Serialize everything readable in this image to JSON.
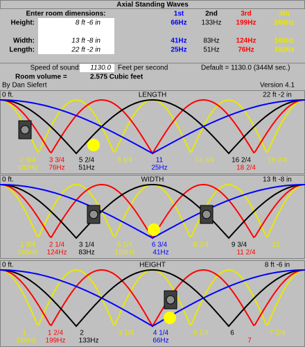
{
  "header": {
    "title": "Axial Standing Waves",
    "prompt": "Enter room dimensions:",
    "columns": [
      {
        "text": "1st",
        "color": "#0000ff"
      },
      {
        "text": "2nd",
        "color": "#000000"
      },
      {
        "text": "3rd",
        "color": "#ff0000"
      },
      {
        "text": "4th",
        "color": "#e8e800"
      }
    ],
    "rows": [
      {
        "label": "Height:",
        "value": "8 ft -6 in",
        "freqs": [
          "66Hz",
          "133Hz",
          "199Hz",
          "266Hz"
        ]
      },
      {
        "label": "Width:",
        "value": "13 ft -8 in",
        "freqs": [
          "41Hz",
          "83Hz",
          "124Hz",
          "165Hz"
        ]
      },
      {
        "label": "Length:",
        "value": "22 ft -2 in",
        "freqs": [
          "25Hz",
          "51Hz",
          "76Hz",
          "102Hz"
        ]
      }
    ],
    "speed_label": "Speed of sound:",
    "speed_value": "1130.0",
    "speed_unit": "Feet per second",
    "default_note": "Default = 1130.0 (344M sec.)",
    "volume_label": "Room volume =",
    "volume_value": "2.575 Cubic feet",
    "author": "By Dan Siefert",
    "version": "Version 4.1"
  },
  "panels": [
    {
      "title": "LENGTH",
      "start": "0 ft.",
      "size": "22 ft -2 in",
      "row1": [
        {
          "t": "2 3/4",
          "c": "#e8e800"
        },
        {
          "t": "3 3/4",
          "c": "#ff0000"
        },
        {
          "t": "5 2/4",
          "c": "#000000"
        },
        {
          "t": "8 1/4",
          "c": "#e8e800"
        },
        {
          "t": "11",
          "c": "#0000ff"
        },
        {
          "t": "13 3/4",
          "c": "#e8e800"
        },
        {
          "t": "16 2/4",
          "c": "#000000"
        },
        {
          "t": "19 2/4",
          "c": "#e8e800"
        }
      ],
      "row2": [
        {
          "t": "102Hz",
          "c": "#e8e800"
        },
        {
          "t": "76Hz",
          "c": "#ff0000"
        },
        {
          "t": "51Hz",
          "c": "#000000"
        },
        {
          "t": "25Hz",
          "c": "#0000ff"
        },
        {
          "t": "18 2/4",
          "c": "#ff0000"
        }
      ]
    },
    {
      "title": "WIDTH",
      "start": "0 ft.",
      "size": "13 ft -8 in",
      "row1": [
        {
          "t": "1 3/4",
          "c": "#e8e800"
        },
        {
          "t": "2 1/4",
          "c": "#ff0000"
        },
        {
          "t": "3 1/4",
          "c": "#000000"
        },
        {
          "t": "5 1/4",
          "c": "#e8e800"
        },
        {
          "t": "6 3/4",
          "c": "#0000ff"
        },
        {
          "t": "8 2/4",
          "c": "#e8e800"
        },
        {
          "t": "9 3/4",
          "c": "#000000"
        },
        {
          "t": "12",
          "c": "#e8e800"
        }
      ],
      "row2": [
        {
          "t": "165Hz",
          "c": "#e8e800"
        },
        {
          "t": "124Hz",
          "c": "#ff0000"
        },
        {
          "t": "83Hz",
          "c": "#000000"
        },
        {
          "t": "165Hz",
          "c": "#e8e800"
        },
        {
          "t": "41Hz",
          "c": "#0000ff"
        },
        {
          "t": "11 2/4",
          "c": "#ff0000"
        }
      ]
    },
    {
      "title": "HEIGHT",
      "start": "0 ft.",
      "size": "8 ft -6 in",
      "row1": [
        {
          "t": "1",
          "c": "#e8e800"
        },
        {
          "t": "1 2/4",
          "c": "#ff0000"
        },
        {
          "t": "2",
          "c": "#000000"
        },
        {
          "t": "3 1/4",
          "c": "#e8e800"
        },
        {
          "t": "4 1/4",
          "c": "#0000ff"
        },
        {
          "t": "5 1/4",
          "c": "#e8e800"
        },
        {
          "t": "6",
          "c": "#000000"
        },
        {
          "t": "7 2/4",
          "c": "#e8e800"
        }
      ],
      "row2": [
        {
          "t": "266Hz",
          "c": "#e8e800"
        },
        {
          "t": "199Hz",
          "c": "#ff0000"
        },
        {
          "t": "133Hz",
          "c": "#000000"
        },
        {
          "t": "66Hz",
          "c": "#0000ff"
        },
        {
          "t": "7",
          "c": "#ff0000"
        }
      ]
    }
  ]
}
